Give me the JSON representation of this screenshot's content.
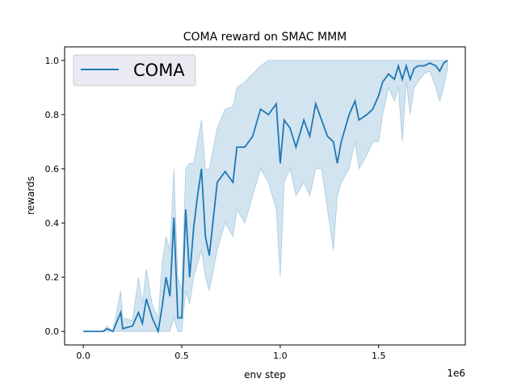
{
  "chart_data": {
    "type": "line",
    "title": "COMA reward on SMAC MMM",
    "xlabel": "env step",
    "ylabel": "rewards",
    "x_offset_label": "1e6",
    "xlim": [
      -0.095,
      1.94
    ],
    "ylim": [
      -0.05,
      1.05
    ],
    "x_ticks": [
      0.0,
      0.5,
      1.0,
      1.5
    ],
    "x_tick_labels": [
      "0.0",
      "0.5",
      "1.0",
      "1.5"
    ],
    "y_ticks": [
      0.0,
      0.2,
      0.4,
      0.6,
      0.8,
      1.0
    ],
    "y_tick_labels": [
      "0.0",
      "0.2",
      "0.4",
      "0.6",
      "0.8",
      "1.0"
    ],
    "grid": false,
    "legend_position": "top-left",
    "colors": {
      "line": "#1f77b4",
      "band": "#1f77b4",
      "legend_bg": "#eaeaf2"
    },
    "series": [
      {
        "name": "COMA",
        "x": [
          0,
          0.1,
          0.12,
          0.15,
          0.19,
          0.2,
          0.25,
          0.28,
          0.3,
          0.32,
          0.35,
          0.38,
          0.4,
          0.42,
          0.44,
          0.46,
          0.48,
          0.5,
          0.52,
          0.54,
          0.56,
          0.58,
          0.6,
          0.62,
          0.64,
          0.68,
          0.72,
          0.76,
          0.78,
          0.82,
          0.86,
          0.9,
          0.94,
          0.98,
          1.0,
          1.02,
          1.05,
          1.08,
          1.12,
          1.15,
          1.18,
          1.21,
          1.24,
          1.27,
          1.29,
          1.31,
          1.35,
          1.38,
          1.4,
          1.44,
          1.47,
          1.5,
          1.52,
          1.55,
          1.58,
          1.6,
          1.62,
          1.64,
          1.66,
          1.68,
          1.7,
          1.73,
          1.76,
          1.79,
          1.81,
          1.83,
          1.85
        ],
        "y": [
          0,
          0,
          0.01,
          0,
          0.07,
          0.01,
          0.02,
          0.07,
          0.03,
          0.12,
          0.05,
          0,
          0.09,
          0.2,
          0.13,
          0.42,
          0.05,
          0.05,
          0.45,
          0.2,
          0.38,
          0.5,
          0.6,
          0.35,
          0.28,
          0.55,
          0.59,
          0.55,
          0.68,
          0.68,
          0.72,
          0.82,
          0.8,
          0.84,
          0.62,
          0.78,
          0.75,
          0.68,
          0.78,
          0.72,
          0.84,
          0.78,
          0.72,
          0.7,
          0.62,
          0.7,
          0.8,
          0.85,
          0.78,
          0.8,
          0.82,
          0.87,
          0.92,
          0.95,
          0.93,
          0.98,
          0.93,
          0.98,
          0.93,
          0.97,
          0.98,
          0.98,
          0.99,
          0.98,
          0.96,
          0.99,
          1.0
        ],
        "lower": [
          0,
          0,
          0,
          0,
          0,
          0,
          0,
          0,
          0,
          0,
          0,
          0,
          0,
          0,
          0,
          0.05,
          0,
          0,
          0.15,
          0.1,
          0.2,
          0.25,
          0.3,
          0.2,
          0.15,
          0.3,
          0.4,
          0.35,
          0.45,
          0.4,
          0.5,
          0.6,
          0.55,
          0.45,
          0.2,
          0.55,
          0.6,
          0.5,
          0.55,
          0.5,
          0.6,
          0.6,
          0.45,
          0.3,
          0.5,
          0.55,
          0.6,
          0.7,
          0.6,
          0.65,
          0.7,
          0.7,
          0.8,
          0.9,
          0.85,
          0.9,
          0.7,
          0.92,
          0.8,
          0.9,
          0.92,
          0.95,
          0.96,
          0.9,
          0.85,
          0.9,
          0.97
        ],
        "upper": [
          0,
          0,
          0.02,
          0,
          0.15,
          0.05,
          0.04,
          0.2,
          0.1,
          0.23,
          0.1,
          0.05,
          0.25,
          0.35,
          0.3,
          0.6,
          0.2,
          0.15,
          0.6,
          0.62,
          0.62,
          0.7,
          0.78,
          0.6,
          0.6,
          0.75,
          0.82,
          0.83,
          0.9,
          0.92,
          0.95,
          0.98,
          1.0,
          1.0,
          1.0,
          1.0,
          1.0,
          1.0,
          1.0,
          1.0,
          1.0,
          1.0,
          1.0,
          1.0,
          1.0,
          1.0,
          1.0,
          1.0,
          1.0,
          1.0,
          1.0,
          1.0,
          1.0,
          1.0,
          1.0,
          1.0,
          1.0,
          1.0,
          1.0,
          1.0,
          1.0,
          1.0,
          1.0,
          1.0,
          1.0,
          1.0,
          1.0
        ]
      }
    ]
  }
}
